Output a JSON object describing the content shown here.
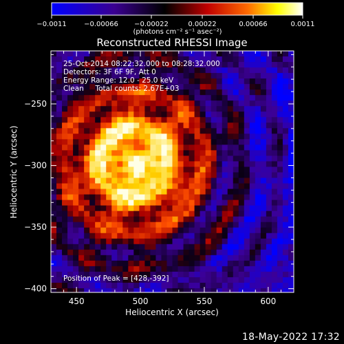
{
  "chart_data": {
    "type": "heatmap",
    "title": "Reconstructed RHESSI Image",
    "xlabel": "Heliocentric X (arcsec)",
    "ylabel": "Heliocentric Y (arcsec)",
    "xlim": [
      430,
      620
    ],
    "ylim": [
      -403,
      -207
    ],
    "x_ticks": [
      "450",
      "500",
      "550",
      "600"
    ],
    "y_ticks": [
      "-250",
      "-300",
      "-350",
      "-400"
    ],
    "colorbar": {
      "range": [
        -0.0011,
        0.0011
      ],
      "tick_labels": [
        "-0.0011",
        "-0.00066",
        "-0.00022",
        "0.00022",
        "0.00066",
        "0.0011"
      ],
      "unit_label": "(photons cm⁻² s⁻¹ asec⁻²)",
      "colormap": [
        "#0000ff",
        "#000000",
        "#ff0000",
        "#ffff00",
        "#ffffff"
      ]
    },
    "annotations": [
      "25-Oct-2014 08:22:32.000 to 08:28:32.000",
      "Detectors: 3F 6F 9F, Att 0",
      "Energy Range: 12.0 - 25.0 keV",
      "Clean     Total counts: 2.67E+03",
      "Position of Peak = [428,-392]"
    ]
  },
  "footer": {
    "timestamp": "18-May-2022 17:32"
  }
}
